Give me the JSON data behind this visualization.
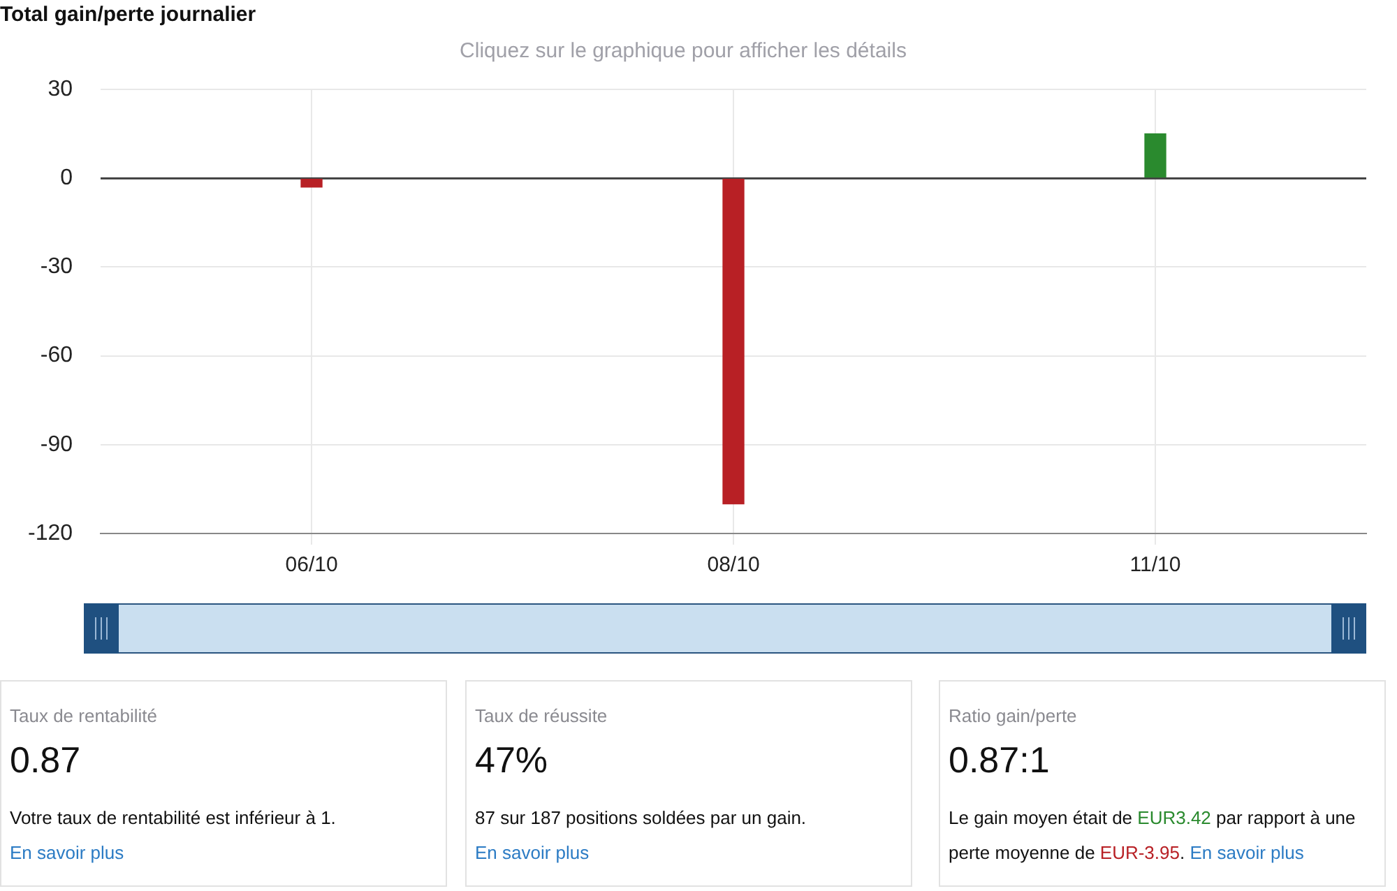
{
  "chart_data": [
    {
      "type": "bar",
      "title": "Total gain/perte journalier",
      "subtitle": "Cliquez sur le graphique pour afficher les détails",
      "categories": [
        "06/10",
        "08/10",
        "11/10"
      ],
      "values": [
        -3,
        -110,
        15
      ],
      "colors": [
        "#b82025",
        "#b82025",
        "#2a8a2e"
      ],
      "ylim": [
        -120,
        30
      ],
      "yticks": [
        -120,
        -90,
        -60,
        -30,
        0,
        30
      ],
      "grid": true
    },
    {
      "type": "other",
      "title": "Taux de rentabilité",
      "subtitle": "0.87",
      "annotations": [
        "Votre taux de rentabilité est inférieur à 1.",
        "En savoir plus"
      ],
      "colors": [
        "#111111",
        "#2b7bc4"
      ]
    },
    {
      "type": "other",
      "title": "Taux de réussite",
      "subtitle": "47%",
      "annotations": [
        "87 sur 187 positions soldées par un gain.",
        "En savoir plus"
      ],
      "colors": [
        "#111111",
        "#2b7bc4"
      ]
    },
    {
      "type": "other",
      "title": "Ratio gain/perte",
      "subtitle": "0.87:1",
      "annotations": [
        "Le gain moyen était de ",
        "EUR3.42",
        " par rapport à une perte moyenne de ",
        "EUR-3.95",
        ". ",
        "En savoir plus"
      ],
      "colors": [
        "#111111",
        "#2a8a2e",
        "#111111",
        "#b82025",
        "#111111",
        "#2b7bc4"
      ]
    }
  ]
}
